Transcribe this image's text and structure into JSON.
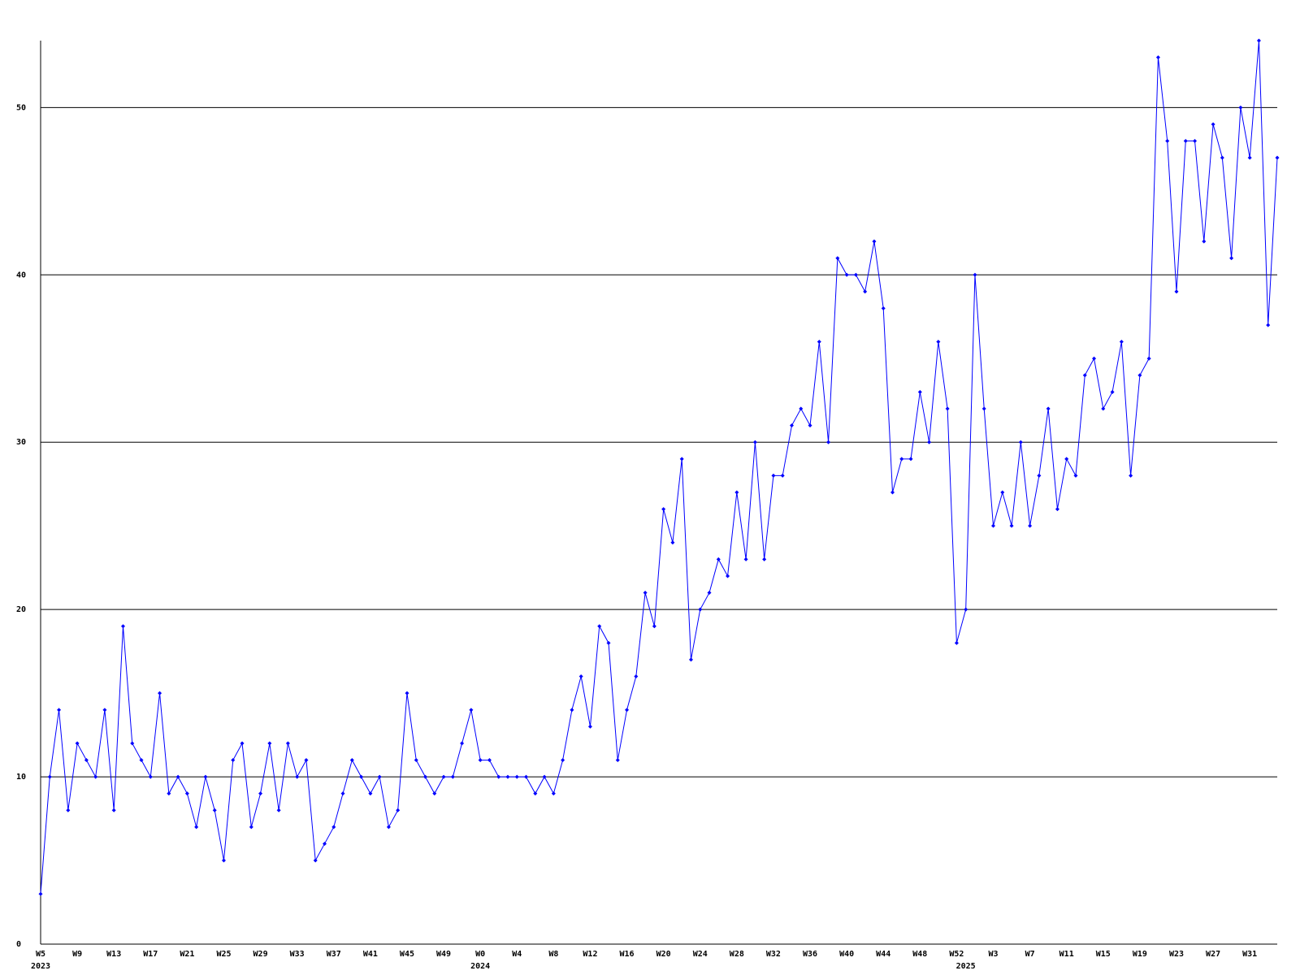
{
  "chart_data": {
    "type": "line",
    "categories": [
      "W5",
      null,
      null,
      null,
      "W9",
      null,
      null,
      null,
      "W13",
      null,
      null,
      null,
      "W17",
      null,
      null,
      null,
      "W21",
      null,
      null,
      null,
      "W25",
      null,
      null,
      null,
      "W29",
      null,
      null,
      null,
      "W33",
      null,
      null,
      null,
      "W37",
      null,
      null,
      null,
      "W41",
      null,
      null,
      null,
      "W45",
      null,
      null,
      null,
      "W49",
      null,
      null,
      null,
      "W0",
      null,
      null,
      null,
      "W4",
      null,
      null,
      null,
      "W8",
      null,
      null,
      null,
      "W12",
      null,
      null,
      null,
      "W16",
      null,
      null,
      null,
      "W20",
      null,
      null,
      null,
      "W24",
      null,
      null,
      null,
      "W28",
      null,
      null,
      null,
      "W32",
      null,
      null,
      null,
      "W36",
      null,
      null,
      null,
      "W40",
      null,
      null,
      null,
      "W44",
      null,
      null,
      null,
      "W48",
      null,
      null,
      null,
      "W52",
      null,
      null,
      null,
      "W3",
      null,
      null,
      null,
      "W7",
      null,
      null,
      null,
      "W11",
      null,
      null,
      null,
      "W15",
      null,
      null,
      null,
      "W19",
      null,
      null,
      null,
      "W23",
      null,
      null,
      null,
      "W27",
      null,
      null,
      null,
      "W31",
      null,
      null,
      null
    ],
    "x_group_labels": [
      "2023",
      null,
      null,
      null,
      null,
      null,
      null,
      null,
      null,
      null,
      null,
      null,
      null,
      null,
      null,
      null,
      null,
      null,
      null,
      null,
      null,
      null,
      null,
      null,
      null,
      null,
      null,
      null,
      null,
      null,
      null,
      null,
      null,
      null,
      null,
      null,
      null,
      null,
      null,
      null,
      null,
      null,
      null,
      null,
      null,
      null,
      null,
      null,
      "2024",
      null,
      null,
      null,
      null,
      null,
      null,
      null,
      null,
      null,
      null,
      null,
      null,
      null,
      null,
      null,
      null,
      null,
      null,
      null,
      null,
      null,
      null,
      null,
      null,
      null,
      null,
      null,
      null,
      null,
      null,
      null,
      null,
      null,
      null,
      null,
      null,
      null,
      null,
      null,
      null,
      null,
      null,
      null,
      null,
      null,
      null,
      null,
      null,
      null,
      null,
      null,
      null,
      "2025",
      null,
      null,
      null,
      null,
      null,
      null,
      null,
      null,
      null,
      null,
      null,
      null,
      null,
      null,
      null,
      null,
      null,
      null,
      null,
      null,
      null,
      null,
      null,
      null,
      null,
      null,
      null,
      null,
      null,
      null,
      null,
      null,
      null,
      null
    ],
    "series": [
      {
        "color": "#0000ff",
        "values": [
          3,
          10,
          14,
          8,
          12,
          11,
          10,
          14,
          8,
          19,
          12,
          11,
          10,
          15,
          9,
          10,
          9,
          7,
          10,
          8,
          5,
          11,
          12,
          7,
          9,
          12,
          8,
          12,
          10,
          11,
          5,
          6,
          7,
          9,
          11,
          10,
          9,
          10,
          7,
          8,
          15,
          11,
          10,
          9,
          10,
          10,
          12,
          14,
          11,
          11,
          10,
          10,
          10,
          10,
          9,
          10,
          9,
          11,
          14,
          16,
          13,
          19,
          18,
          11,
          14,
          16,
          21,
          19,
          26,
          24,
          29,
          17,
          20,
          21,
          23,
          22,
          27,
          23,
          30,
          23,
          28,
          28,
          31,
          32,
          31,
          36,
          30,
          41,
          40,
          40,
          39,
          42,
          38,
          27,
          29,
          29,
          33,
          30,
          36,
          32,
          18,
          20,
          40,
          32,
          25,
          27,
          25,
          30,
          25,
          28,
          32,
          26,
          29,
          28,
          34,
          35,
          32,
          33,
          36,
          28,
          34,
          35,
          53,
          48,
          39,
          48,
          48,
          42,
          49,
          47,
          41,
          50,
          47,
          54,
          37,
          47
        ]
      }
    ],
    "ylim": [
      0,
      54
    ],
    "yticks": [
      0,
      10,
      20,
      30,
      40,
      50
    ],
    "grid": true
  }
}
